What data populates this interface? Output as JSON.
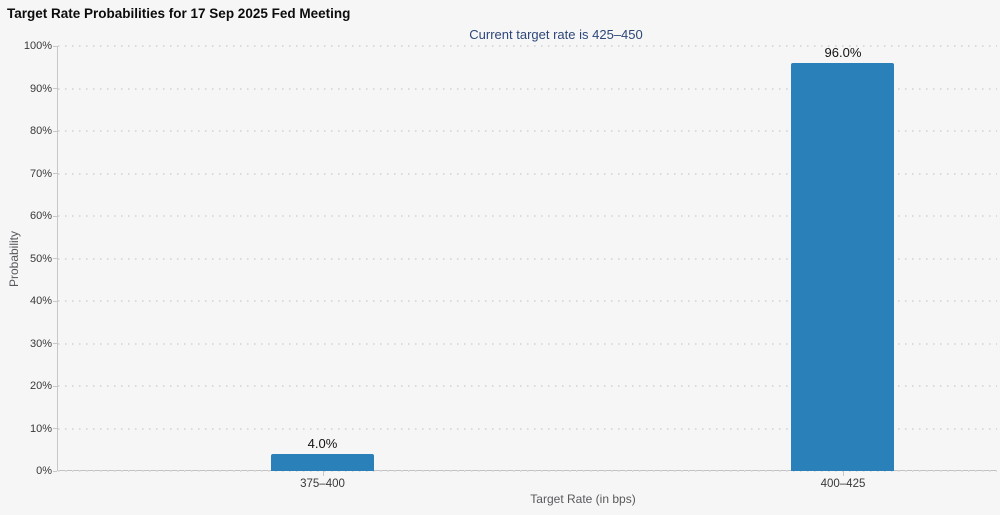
{
  "chart_data": {
    "type": "bar",
    "title": "Target Rate Probabilities for 17 Sep 2025 Fed Meeting",
    "subtitle": "Current target rate is 425–450",
    "categories": [
      "375–400",
      "400–425"
    ],
    "values": [
      4.0,
      96.0
    ],
    "value_labels": [
      "4.0%",
      "96.0%"
    ],
    "xlabel": "Target Rate (in bps)",
    "ylabel": "Probability",
    "ylim": [
      0,
      100
    ],
    "ytick_step": 10,
    "ytick_suffix": "%",
    "grid": "dotted horizontal gridlines",
    "legend": "none",
    "bar_color": "#2a80b9",
    "background_color": "#f6f6f7",
    "subtitle_color": "#2e4778"
  }
}
